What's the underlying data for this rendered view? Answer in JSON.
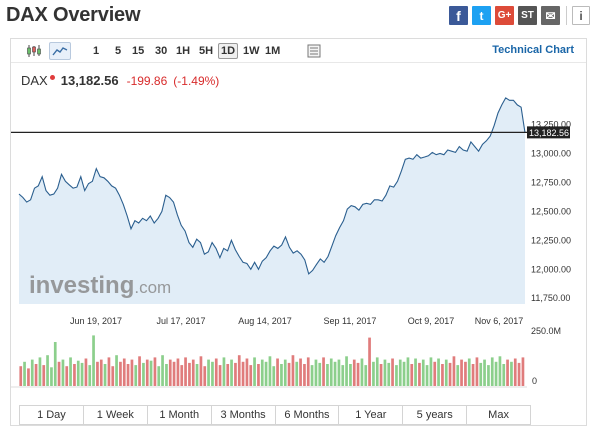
{
  "header": {
    "title": "DAX Overview",
    "share": {
      "facebook": "f",
      "twitter": "t",
      "googleplus": "G+",
      "stocktwits": "ST",
      "email": "✉",
      "info": "i"
    }
  },
  "toolbar": {
    "intervals": [
      "1",
      "5",
      "15",
      "30",
      "1H",
      "5H",
      "1D",
      "1W",
      "1M"
    ],
    "active_interval": "1D",
    "technical_chart_label": "Technical Chart"
  },
  "quote": {
    "symbol": "DAX",
    "last": "13,182.56",
    "change": "-199.86",
    "change_percent": "(-1.49%)",
    "color_down": "#d82b2b"
  },
  "chart_data": {
    "type": "area",
    "watermark_brand": "investing",
    "watermark_domain": ".com",
    "x_tick_labels": [
      "Jun 19, 2017",
      "Jul 17, 2017",
      "Aug 14, 2017",
      "Sep 11, 2017",
      "Oct 9, 2017",
      "Nov 6, 2017"
    ],
    "y_tick_labels": [
      "13,250.00",
      "13,000.00",
      "12,750.00",
      "12,500.00",
      "12,250.00",
      "12,000.00",
      "11,750.00"
    ],
    "y_ticks": [
      13250,
      13000,
      12750,
      12500,
      12250,
      12000,
      11750
    ],
    "last_value": 13182.56,
    "last_value_label": "13,182.56",
    "volume_max_label": "250.0M",
    "volume_zero_label": "0",
    "colors": {
      "line": "#2b5f8f",
      "fill": "#e1edf7",
      "up": "#8ccf8c",
      "down": "#e07c7c"
    },
    "series": [
      {
        "values": [
          12650,
          12620,
          12580,
          12600,
          12700,
          12720,
          12800,
          12680,
          12640,
          12650,
          12700,
          12820,
          12760,
          12730,
          12700,
          12710,
          12800,
          12680,
          12740,
          12760,
          12870,
          12800,
          12790,
          12760,
          12720,
          12700,
          12640,
          12560,
          12460,
          12350,
          12420,
          12400,
          12440,
          12420,
          12460,
          12400,
          12440,
          12500,
          12640,
          12620,
          12580,
          12470,
          12380,
          12330,
          12230,
          12190,
          12260,
          12230,
          12130,
          12150,
          12230,
          12180,
          12100,
          12180,
          12160,
          12250,
          12170,
          12110,
          12060,
          12050,
          12000,
          12060,
          12000,
          12070,
          12100,
          12160,
          12200,
          12180,
          12210,
          12280,
          12190,
          12140,
          12160,
          12130,
          12080,
          11960,
          11990,
          12040,
          12090,
          12060,
          12110,
          12200,
          12290,
          12360,
          12420,
          12520,
          12550,
          12540,
          12510,
          12560,
          12570,
          12560,
          12600,
          12600,
          12590,
          12640,
          12720,
          12710,
          12760,
          12850,
          12950,
          12960,
          12950,
          12990,
          12960,
          12970,
          12980,
          13010,
          12990,
          13000,
          12990,
          13030,
          13020,
          13010,
          13060,
          13030,
          13020,
          13100,
          13060,
          13020,
          13080,
          13110,
          13150,
          13240,
          13350,
          13420,
          13480,
          13460,
          13460,
          13420,
          13400,
          13180
        ]
      }
    ],
    "volume": [
      90,
      110,
      80,
      120,
      100,
      130,
      95,
      140,
      85,
      200,
      110,
      120,
      90,
      130,
      100,
      115,
      105,
      125,
      95,
      230,
      110,
      120,
      100,
      130,
      90,
      140,
      110,
      125,
      100,
      120,
      95,
      135,
      105,
      120,
      115,
      130,
      90,
      140,
      100,
      120,
      110,
      125,
      95,
      130,
      105,
      120,
      100,
      135,
      90,
      120,
      110,
      125,
      95,
      130,
      100,
      120,
      105,
      140,
      110,
      125,
      95,
      130,
      100,
      120,
      110,
      135,
      90,
      125,
      100,
      120,
      105,
      140,
      110,
      125,
      100,
      130,
      95,
      120,
      105,
      130,
      100,
      125,
      110,
      120,
      95,
      135,
      100,
      120,
      105,
      125,
      95,
      220,
      110,
      130,
      100,
      120,
      105,
      125,
      95,
      120,
      110,
      130,
      100,
      125,
      105,
      120,
      95,
      130,
      110,
      125,
      100,
      120,
      105,
      135,
      95,
      120,
      110,
      125,
      100,
      130,
      105,
      120,
      95,
      130,
      110,
      135,
      100,
      120,
      110,
      125,
      105,
      130
    ],
    "volume_down": [
      1,
      0,
      1,
      0,
      1,
      0,
      1,
      0,
      0,
      0,
      1,
      0,
      1,
      0,
      1,
      0,
      0,
      1,
      0,
      0,
      1,
      1,
      0,
      1,
      1,
      0,
      1,
      1,
      1,
      1,
      0,
      1,
      0,
      1,
      0,
      1,
      0,
      0,
      0,
      1,
      1,
      1,
      1,
      1,
      1,
      1,
      0,
      1,
      1,
      0,
      0,
      1,
      1,
      0,
      1,
      0,
      1,
      1,
      1,
      1,
      1,
      0,
      1,
      0,
      0,
      0,
      0,
      1,
      0,
      0,
      1,
      1,
      0,
      1,
      1,
      1,
      0,
      0,
      0,
      1,
      0,
      0,
      0,
      0,
      0,
      0,
      0,
      1,
      1,
      0,
      0,
      1,
      0,
      0,
      1,
      0,
      0,
      1,
      0,
      0,
      0,
      0,
      1,
      0,
      1,
      0,
      0,
      0,
      1,
      0,
      1,
      0,
      1,
      1,
      0,
      1,
      1,
      0,
      1,
      1,
      0,
      0,
      0,
      0,
      0,
      0,
      0,
      1,
      0,
      1,
      1,
      1
    ]
  },
  "ranges": [
    "1 Day",
    "1 Week",
    "1 Month",
    "3 Months",
    "6 Months",
    "1 Year",
    "5 years",
    "Max"
  ]
}
